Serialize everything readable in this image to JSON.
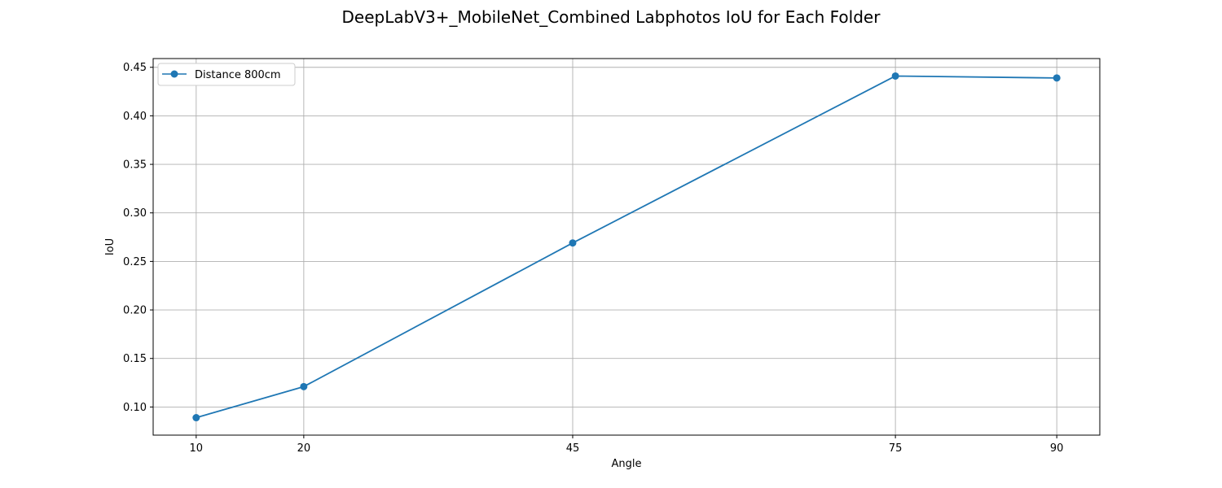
{
  "chart_data": {
    "type": "line",
    "title": "DeepLabV3+_MobileNet_Combined Labphotos IoU for Each Folder",
    "xlabel": "Angle",
    "ylabel": "IoU",
    "x": [
      10,
      20,
      45,
      75,
      90
    ],
    "x_ticks": [
      "10",
      "20",
      "45",
      "75",
      "90"
    ],
    "xlim": [
      6,
      94
    ],
    "y_ticks": [
      "0.10",
      "0.15",
      "0.20",
      "0.25",
      "0.30",
      "0.35",
      "0.40",
      "0.45"
    ],
    "ylim": [
      0.071,
      0.459
    ],
    "grid": true,
    "legend_position": "top-left",
    "series": [
      {
        "name": "Distance 800cm",
        "color": "#1f77b4",
        "marker": "circle",
        "values": [
          0.089,
          0.121,
          0.269,
          0.441,
          0.439
        ]
      }
    ]
  }
}
